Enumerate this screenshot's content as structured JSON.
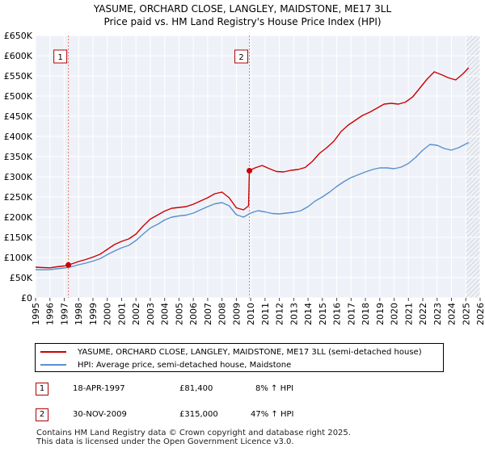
{
  "title_line1": "YASUME, ORCHARD CLOSE, LANGLEY, MAIDSTONE, ME17 3LL",
  "title_line2": "Price paid vs. HM Land Registry's House Price Index (HPI)",
  "chart_data": {
    "type": "line",
    "xlim": [
      1995,
      2026
    ],
    "ylim": [
      0,
      650000
    ],
    "x_ticks": [
      1995,
      1996,
      1997,
      1998,
      1999,
      2000,
      2001,
      2002,
      2003,
      2004,
      2005,
      2006,
      2007,
      2008,
      2009,
      2010,
      2011,
      2012,
      2013,
      2014,
      2015,
      2016,
      2017,
      2018,
      2019,
      2020,
      2021,
      2022,
      2023,
      2024,
      2025,
      2026
    ],
    "y_ticks": [
      {
        "value": 0,
        "label": "£0"
      },
      {
        "value": 50000,
        "label": "£50K"
      },
      {
        "value": 100000,
        "label": "£100K"
      },
      {
        "value": 150000,
        "label": "£150K"
      },
      {
        "value": 200000,
        "label": "£200K"
      },
      {
        "value": 250000,
        "label": "£250K"
      },
      {
        "value": 300000,
        "label": "£300K"
      },
      {
        "value": 350000,
        "label": "£350K"
      },
      {
        "value": 400000,
        "label": "£400K"
      },
      {
        "value": 450000,
        "label": "£450K"
      },
      {
        "value": 500000,
        "label": "£500K"
      },
      {
        "value": 550000,
        "label": "£550K"
      },
      {
        "value": 600000,
        "label": "£600K"
      },
      {
        "value": 650000,
        "label": "£650K"
      }
    ],
    "grid": true,
    "forecast_hatch_from": 2025.0,
    "markers": [
      {
        "label": "1",
        "x": 1997.29,
        "y": 81400
      },
      {
        "label": "2",
        "x": 2009.91,
        "y": 315000
      }
    ],
    "series": [
      {
        "name": "YASUME, ORCHARD CLOSE, LANGLEY, MAIDSTONE, ME17 3LL (semi-detached house)",
        "color": "#cc0000",
        "points": [
          [
            1995.0,
            76000
          ],
          [
            1995.5,
            75000
          ],
          [
            1996.0,
            74500
          ],
          [
            1996.5,
            77000
          ],
          [
            1997.0,
            79000
          ],
          [
            1997.29,
            81400
          ],
          [
            1997.6,
            85000
          ],
          [
            1998.0,
            90000
          ],
          [
            1998.5,
            95000
          ],
          [
            1999.0,
            101000
          ],
          [
            1999.5,
            108000
          ],
          [
            2000.0,
            120000
          ],
          [
            2000.5,
            132000
          ],
          [
            2001.0,
            140000
          ],
          [
            2001.5,
            146000
          ],
          [
            2002.0,
            158000
          ],
          [
            2002.5,
            178000
          ],
          [
            2003.0,
            195000
          ],
          [
            2003.5,
            205000
          ],
          [
            2004.0,
            215000
          ],
          [
            2004.5,
            222000
          ],
          [
            2005.0,
            224000
          ],
          [
            2005.5,
            226000
          ],
          [
            2006.0,
            232000
          ],
          [
            2006.5,
            240000
          ],
          [
            2007.0,
            248000
          ],
          [
            2007.5,
            258000
          ],
          [
            2008.0,
            262000
          ],
          [
            2008.5,
            248000
          ],
          [
            2009.0,
            223000
          ],
          [
            2009.5,
            218000
          ],
          [
            2009.85,
            228000
          ],
          [
            2009.91,
            315000
          ],
          [
            2010.3,
            322000
          ],
          [
            2010.8,
            328000
          ],
          [
            2011.3,
            320000
          ],
          [
            2011.8,
            313000
          ],
          [
            2012.3,
            312000
          ],
          [
            2012.8,
            316000
          ],
          [
            2013.3,
            318000
          ],
          [
            2013.8,
            323000
          ],
          [
            2014.3,
            338000
          ],
          [
            2014.8,
            358000
          ],
          [
            2015.3,
            372000
          ],
          [
            2015.8,
            388000
          ],
          [
            2016.3,
            412000
          ],
          [
            2016.8,
            428000
          ],
          [
            2017.3,
            440000
          ],
          [
            2017.8,
            452000
          ],
          [
            2018.3,
            460000
          ],
          [
            2018.8,
            470000
          ],
          [
            2019.3,
            480000
          ],
          [
            2019.8,
            482000
          ],
          [
            2020.3,
            480000
          ],
          [
            2020.8,
            485000
          ],
          [
            2021.3,
            498000
          ],
          [
            2021.8,
            520000
          ],
          [
            2022.3,
            542000
          ],
          [
            2022.8,
            560000
          ],
          [
            2023.3,
            553000
          ],
          [
            2023.8,
            545000
          ],
          [
            2024.3,
            540000
          ],
          [
            2024.8,
            555000
          ],
          [
            2025.2,
            570000
          ]
        ]
      },
      {
        "name": "HPI: Average price, semi-detached house, Maidstone",
        "color": "#5b8fcc",
        "points": [
          [
            1995.0,
            70000
          ],
          [
            1995.5,
            69500
          ],
          [
            1996.0,
            70000
          ],
          [
            1996.5,
            72000
          ],
          [
            1997.0,
            74000
          ],
          [
            1997.5,
            77000
          ],
          [
            1998.0,
            82000
          ],
          [
            1998.5,
            86000
          ],
          [
            1999.0,
            91000
          ],
          [
            1999.5,
            97000
          ],
          [
            2000.0,
            107000
          ],
          [
            2000.5,
            116000
          ],
          [
            2001.0,
            124000
          ],
          [
            2001.5,
            130000
          ],
          [
            2002.0,
            142000
          ],
          [
            2002.5,
            158000
          ],
          [
            2003.0,
            173000
          ],
          [
            2003.5,
            182000
          ],
          [
            2004.0,
            193000
          ],
          [
            2004.5,
            200000
          ],
          [
            2005.0,
            203000
          ],
          [
            2005.5,
            205000
          ],
          [
            2006.0,
            210000
          ],
          [
            2006.5,
            218000
          ],
          [
            2007.0,
            226000
          ],
          [
            2007.5,
            233000
          ],
          [
            2008.0,
            236000
          ],
          [
            2008.5,
            228000
          ],
          [
            2009.0,
            206000
          ],
          [
            2009.5,
            200000
          ],
          [
            2010.0,
            210000
          ],
          [
            2010.5,
            216000
          ],
          [
            2011.0,
            213000
          ],
          [
            2011.5,
            209000
          ],
          [
            2012.0,
            208000
          ],
          [
            2012.5,
            210000
          ],
          [
            2013.0,
            212000
          ],
          [
            2013.5,
            216000
          ],
          [
            2014.0,
            226000
          ],
          [
            2014.5,
            240000
          ],
          [
            2015.0,
            250000
          ],
          [
            2015.5,
            262000
          ],
          [
            2016.0,
            276000
          ],
          [
            2016.5,
            288000
          ],
          [
            2017.0,
            298000
          ],
          [
            2017.5,
            305000
          ],
          [
            2018.0,
            312000
          ],
          [
            2018.5,
            318000
          ],
          [
            2019.0,
            322000
          ],
          [
            2019.5,
            322000
          ],
          [
            2020.0,
            320000
          ],
          [
            2020.5,
            324000
          ],
          [
            2021.0,
            333000
          ],
          [
            2021.5,
            348000
          ],
          [
            2022.0,
            366000
          ],
          [
            2022.5,
            380000
          ],
          [
            2023.0,
            378000
          ],
          [
            2023.5,
            370000
          ],
          [
            2024.0,
            366000
          ],
          [
            2024.5,
            372000
          ],
          [
            2025.2,
            385000
          ]
        ]
      }
    ]
  },
  "legend": {
    "items": [
      {
        "label": "YASUME, ORCHARD CLOSE, LANGLEY, MAIDSTONE, ME17 3LL (semi-detached house)",
        "color": "#cc0000"
      },
      {
        "label": "HPI: Average price, semi-detached house, Maidstone",
        "color": "#5b8fcc"
      }
    ]
  },
  "transactions": [
    {
      "marker": "1",
      "date": "18-APR-1997",
      "price": "£81,400",
      "hpi": "8% ↑ HPI"
    },
    {
      "marker": "2",
      "date": "30-NOV-2009",
      "price": "£315,000",
      "hpi": "47% ↑ HPI"
    }
  ],
  "footer": {
    "line1": "Contains HM Land Registry data © Crown copyright and database right 2025.",
    "line2": "This data is licensed under the Open Government Licence v3.0."
  }
}
